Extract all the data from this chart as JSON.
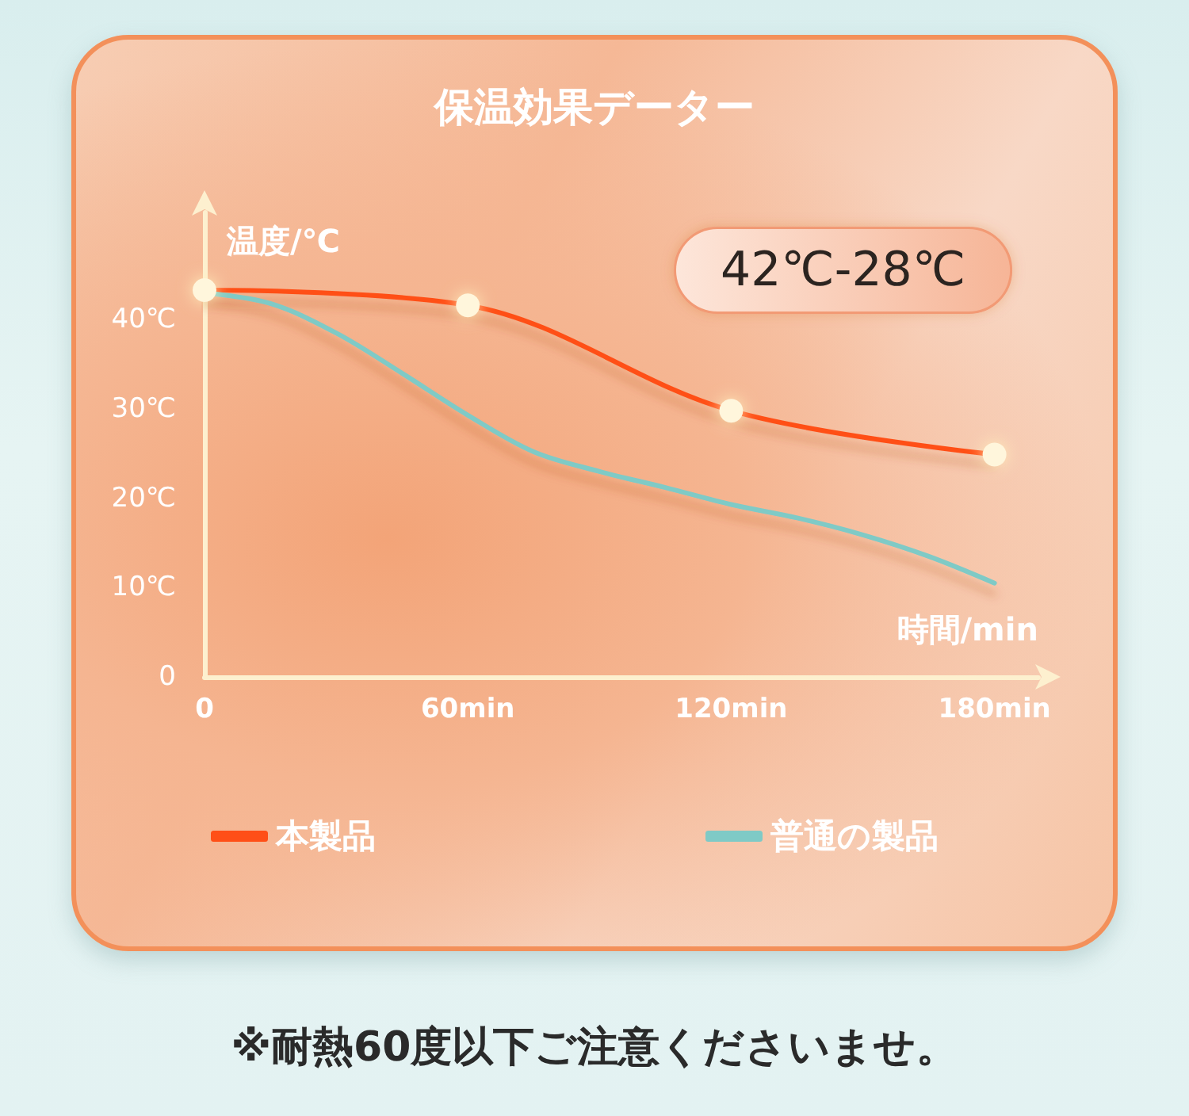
{
  "chart_data": {
    "type": "line",
    "title": "保温効果データー",
    "ylabel": "温度/℃",
    "xlabel": "時間/min",
    "annotations": [
      "42℃-28℃",
      "※耐熱60度以下ご注意くださいませ。"
    ],
    "series": [
      {
        "name": "本製品",
        "color": "#ff4f17",
        "x": [
          0,
          60,
          120,
          180
        ],
        "values": [
          43.3,
          41.6,
          29.8,
          24.9
        ]
      },
      {
        "name": "普通の製品",
        "color": "#7fcac6",
        "marker": "none",
        "x": [
          0,
          15,
          30,
          45,
          60,
          75,
          90,
          105,
          120,
          135,
          150,
          165,
          180
        ],
        "values": [
          43.0,
          41.8,
          38.5,
          34.0,
          29.3,
          25.2,
          23.0,
          21.2,
          19.3,
          17.8,
          15.9,
          13.5,
          10.5
        ]
      }
    ],
    "xlim": [
      0,
      190
    ],
    "ylim": [
      0,
      52
    ],
    "xticks": [
      0,
      {
        "value": 60,
        "label": "60min"
      },
      {
        "value": 120,
        "label": "120min"
      },
      {
        "value": 180,
        "label": "180min"
      }
    ],
    "yticks": [
      0,
      {
        "value": 10,
        "label": "10℃"
      },
      {
        "value": 20,
        "label": "20℃"
      },
      {
        "value": 30,
        "label": "30℃"
      },
      {
        "value": 40,
        "label": "40℃"
      }
    ],
    "grid": false,
    "legend": "bottom",
    "marker": "circle",
    "line_style": "solid"
  }
}
